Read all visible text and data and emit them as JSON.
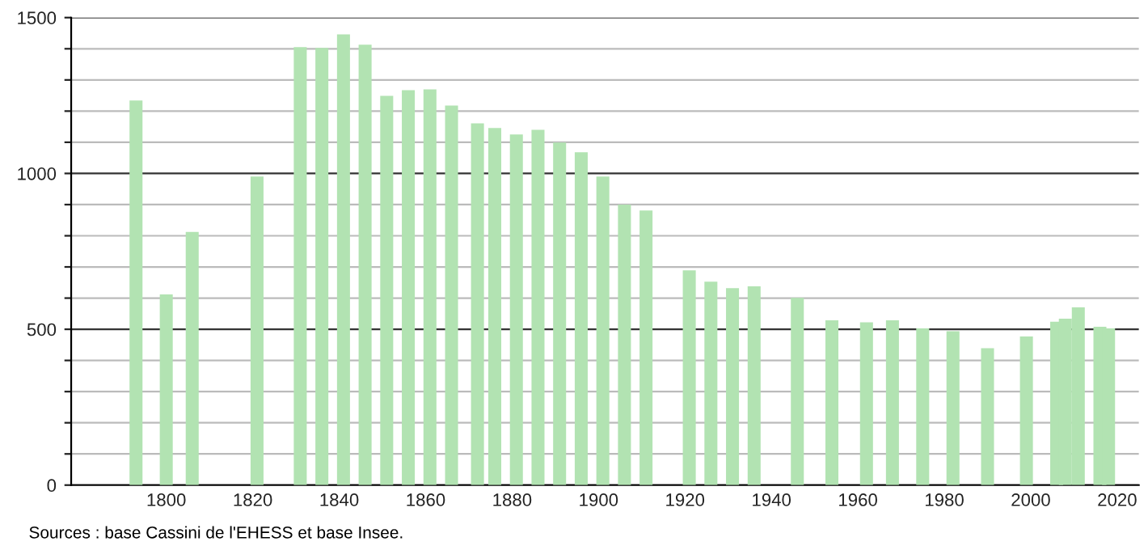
{
  "chart_data": {
    "type": "bar",
    "color": "#b2e3b2",
    "x": [
      1793,
      1800,
      1806,
      1821,
      1831,
      1836,
      1841,
      1846,
      1851,
      1856,
      1861,
      1866,
      1872,
      1876,
      1881,
      1886,
      1891,
      1896,
      1901,
      1906,
      1911,
      1921,
      1926,
      1931,
      1936,
      1946,
      1954,
      1962,
      1968,
      1975,
      1982,
      1990,
      1999,
      2006,
      2008,
      2011,
      2016,
      2018
    ],
    "values": [
      1234,
      612,
      812,
      990,
      1405,
      1403,
      1446,
      1413,
      1249,
      1267,
      1270,
      1218,
      1161,
      1146,
      1125,
      1140,
      1099,
      1068,
      990,
      900,
      881,
      689,
      653,
      632,
      638,
      601,
      529,
      522,
      529,
      503,
      494,
      439,
      477,
      524,
      534,
      570,
      508,
      503
    ],
    "xlim": [
      1778,
      2025
    ],
    "xticks": [
      1800,
      1820,
      1840,
      1860,
      1880,
      1900,
      1920,
      1940,
      1960,
      1980,
      2000,
      2020
    ],
    "ylim": [
      0,
      1500
    ],
    "yticks": [
      0,
      {
        "value": 100,
        "label": null
      },
      {
        "value": 200,
        "label": null
      },
      {
        "value": 300,
        "label": null
      },
      {
        "value": 400,
        "label": null
      },
      500,
      {
        "value": 600,
        "label": null
      },
      {
        "value": 700,
        "label": null
      },
      {
        "value": 800,
        "label": null
      },
      {
        "value": 900,
        "label": null
      },
      1000,
      {
        "value": 1100,
        "label": null
      },
      {
        "value": 1200,
        "label": null
      },
      {
        "value": 1300,
        "label": null
      },
      {
        "value": 1400,
        "label": null
      },
      1500
    ],
    "grid": "y",
    "annotations": [
      "Sources : base Cassini de l'EHESS et base Insee."
    ]
  }
}
